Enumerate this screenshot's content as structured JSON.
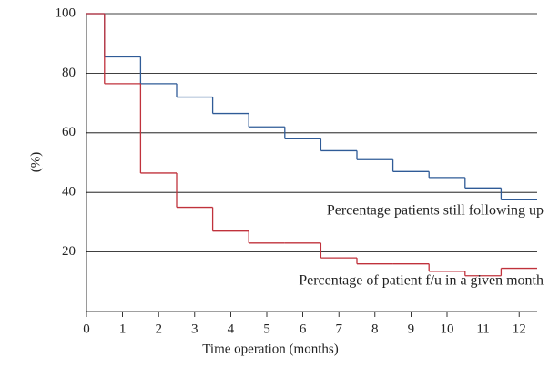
{
  "chart_data": {
    "type": "step",
    "x_label": "Time operation (months)",
    "y_label": "(%)",
    "x": [
      0,
      0.5,
      1.5,
      2.5,
      3.5,
      4.5,
      5.5,
      6.5,
      7.5,
      8.5,
      9.5,
      10.5,
      11.5
    ],
    "series": [
      {
        "name": "Percentage patients still following up",
        "color": "#2f5b97",
        "values": [
          100,
          85.5,
          76.5,
          72,
          66.5,
          62,
          58,
          54,
          51,
          47,
          45,
          41.5,
          37.5
        ]
      },
      {
        "name": "Percentage of patient f/u in a given month",
        "color": "#c0323c",
        "values": [
          100,
          76.5,
          46.5,
          35,
          27,
          23,
          23,
          18,
          16,
          16,
          13.5,
          12,
          14.5
        ]
      }
    ],
    "xlim": [
      0,
      12.5
    ],
    "xticks": [
      0,
      1,
      2,
      3,
      4,
      5,
      6,
      7,
      8,
      9,
      10,
      11,
      12
    ],
    "ylim": [
      0,
      100
    ],
    "yticks": [
      20,
      40,
      60,
      80,
      100
    ],
    "grid": true
  }
}
